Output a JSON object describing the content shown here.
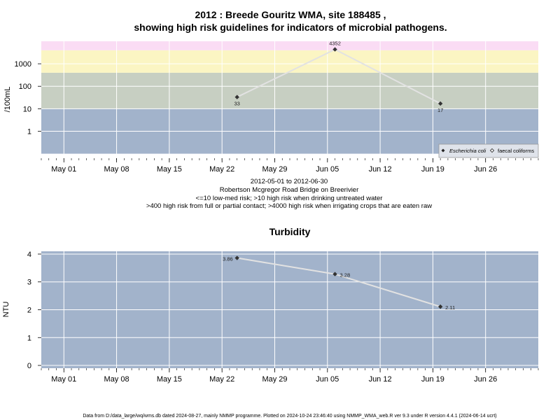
{
  "chart_data": [
    {
      "type": "line",
      "title_line1": "2012 : Breede Gouritz WMA, site 188485 ,",
      "title_line2": "showing high risk guidelines for indicators of microbial pathogens.",
      "ylabel": "/100mL",
      "yscale": "log",
      "yticks": [
        "1",
        "10",
        "100",
        "1000"
      ],
      "x_ticks": [
        "May 01",
        "May 08",
        "May 15",
        "May 22",
        "May 29",
        "Jun 05",
        "Jun 12",
        "Jun 19",
        "Jun 26"
      ],
      "x_range": [
        "2012-04-28",
        "2012-07-03"
      ],
      "bands": [
        {
          "from": 0.1,
          "to": 10,
          "color": "#a2b3cb"
        },
        {
          "from": 10,
          "to": 400,
          "color": "#c7cfc2"
        },
        {
          "from": 400,
          "to": 4000,
          "color": "#fbf5c3"
        },
        {
          "from": 4000,
          "to": 10000,
          "color": "#fadcf4"
        }
      ],
      "series": [
        {
          "name": "Escherichia coli",
          "points": [
            {
              "x": "2012-05-24",
              "y": 33,
              "label": "33"
            },
            {
              "x": "2012-06-06",
              "y": 4352,
              "label": "4352"
            },
            {
              "x": "2012-06-20",
              "y": 17,
              "label": "17"
            }
          ]
        }
      ],
      "legend": {
        "items": [
          "Escherichia coli",
          "faecal coliforms"
        ],
        "position": "bottom-right"
      },
      "caption_lines": [
        "2012-05-01 to 2012-06-30",
        "Robertson Mcgregor Road Bridge on Breerivier",
        "<=10 low-med risk; >10 high risk when drinking untreated water",
        ">400 high risk from full or partial contact; >4000 high risk when irrigating crops that are eaten raw"
      ]
    },
    {
      "type": "line",
      "title": "Turbidity",
      "ylabel": "NTU",
      "ylim": [
        -0.1,
        4.1
      ],
      "yticks": [
        "0",
        "1",
        "2",
        "3",
        "4"
      ],
      "x_ticks": [
        "May 01",
        "May 08",
        "May 15",
        "May 22",
        "May 29",
        "Jun 05",
        "Jun 12",
        "Jun 19",
        "Jun 26"
      ],
      "x_range": [
        "2012-04-28",
        "2012-07-03"
      ],
      "series": [
        {
          "points": [
            {
              "x": "2012-05-24",
              "y": 3.86,
              "label": "3.86"
            },
            {
              "x": "2012-06-06",
              "y": 3.28,
              "label": "3.28"
            },
            {
              "x": "2012-06-20",
              "y": 2.11,
              "label": "2.11"
            }
          ]
        }
      ]
    }
  ],
  "footer": "Data from D:/data_large/wq/wms.db dated 2024-08-27, mainly NMMP programme. Plotted on 2024-10-24 23:46:40 using NMMP_WMA_web.R ver 9.3 under R version 4.4.1 (2024-06-14 ucrt)"
}
